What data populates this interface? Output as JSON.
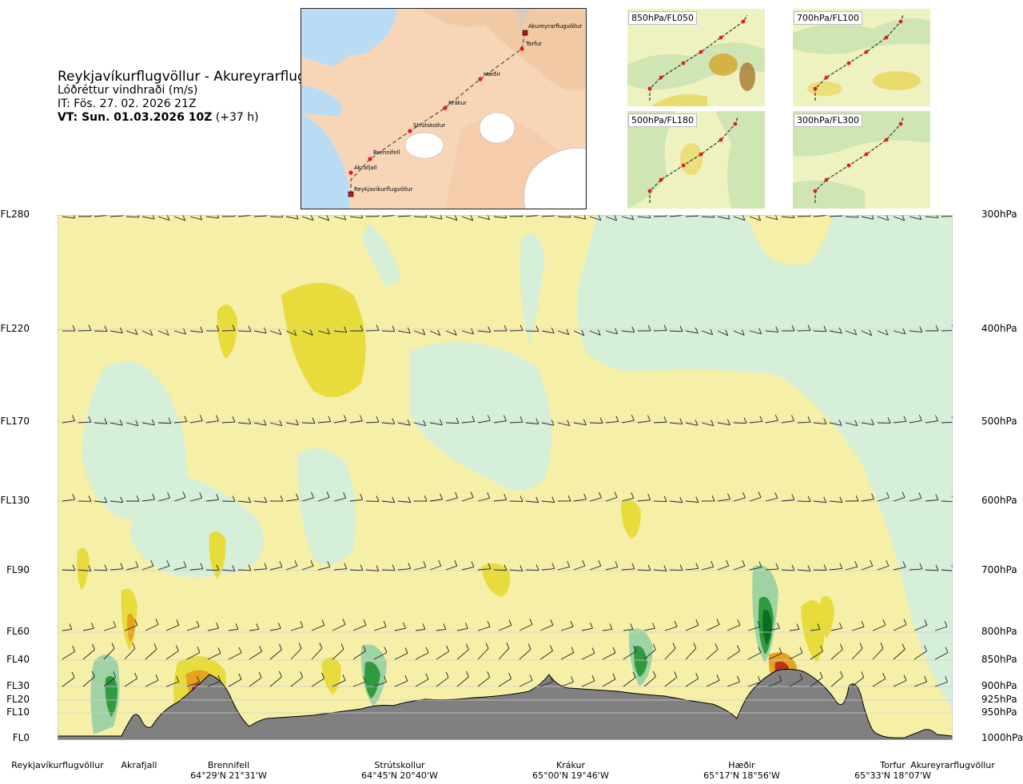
{
  "header": {
    "route_title": "Reykjavíkurflugvöllur - Akureyrarflugvöllur",
    "variable": "Lóðréttur vindhraði (m/s)",
    "issue_time": "IT: Fös. 27. 02. 2026 21Z",
    "valid_time": "VT: Sun. 01.03.2026 10Z",
    "lead_time": "(+37 h)"
  },
  "route_map": {
    "places": [
      "Akureyrarflugvöllur",
      "Torfur",
      "Hæðir",
      "Krákur",
      "Strútskollur",
      "Brennifell",
      "Akrafjall",
      "Reykjavíkurflugvöllur"
    ]
  },
  "mini_maps": [
    {
      "label": "850hPa/FL050"
    },
    {
      "label": "700hPa/FL100"
    },
    {
      "label": "500hPa/FL180"
    },
    {
      "label": "300hPa/FL300"
    }
  ],
  "levels": [
    {
      "fl": "FL280",
      "hpa": "300hPa"
    },
    {
      "fl": "FL220",
      "hpa": "400hPa"
    },
    {
      "fl": "FL170",
      "hpa": "500hPa"
    },
    {
      "fl": "FL130",
      "hpa": "600hPa"
    },
    {
      "fl": "FL90",
      "hpa": "700hPa"
    },
    {
      "fl": "FL60",
      "hpa": "800hPa"
    },
    {
      "fl": "FL40",
      "hpa": "850hPa"
    },
    {
      "fl": "FL30",
      "hpa": "900hPa"
    },
    {
      "fl": "FL20",
      "hpa": "925hPa"
    },
    {
      "fl": "FL10",
      "hpa": "950hPa"
    },
    {
      "fl": "FL0",
      "hpa": "1000hPa"
    }
  ],
  "waypoints": [
    {
      "name": "Reykjavíkurflugvöllur",
      "coord": ""
    },
    {
      "name": "Akrafjall",
      "coord": ""
    },
    {
      "name": "Brennifell",
      "coord": "64°29'N 21°31'W"
    },
    {
      "name": "Strútskollur",
      "coord": "64°45'N 20°40'W"
    },
    {
      "name": "Krákur",
      "coord": "65°00'N 19°46'W"
    },
    {
      "name": "Hæðir",
      "coord": "65°17'N 18°56'W"
    },
    {
      "name": "Torfur",
      "coord": "65°33'N 18°07'W"
    },
    {
      "name": "Akureyrarflugvöllur",
      "coord": ""
    }
  ],
  "colors": {
    "updraft_light": "#f6efa8",
    "updraft_mid": "#e8dc3c",
    "updraft_strong": "#e6a31f",
    "updraft_max": "#8b1a12",
    "downdraft_light": "#d6efd8",
    "downdraft_mid": "#9fd3a4",
    "downdraft_strong": "#2f9a3f",
    "downdraft_max": "#0a6e20",
    "terrain": "#808080",
    "water": "#b9dcf5",
    "land": "#f5d0b0"
  }
}
